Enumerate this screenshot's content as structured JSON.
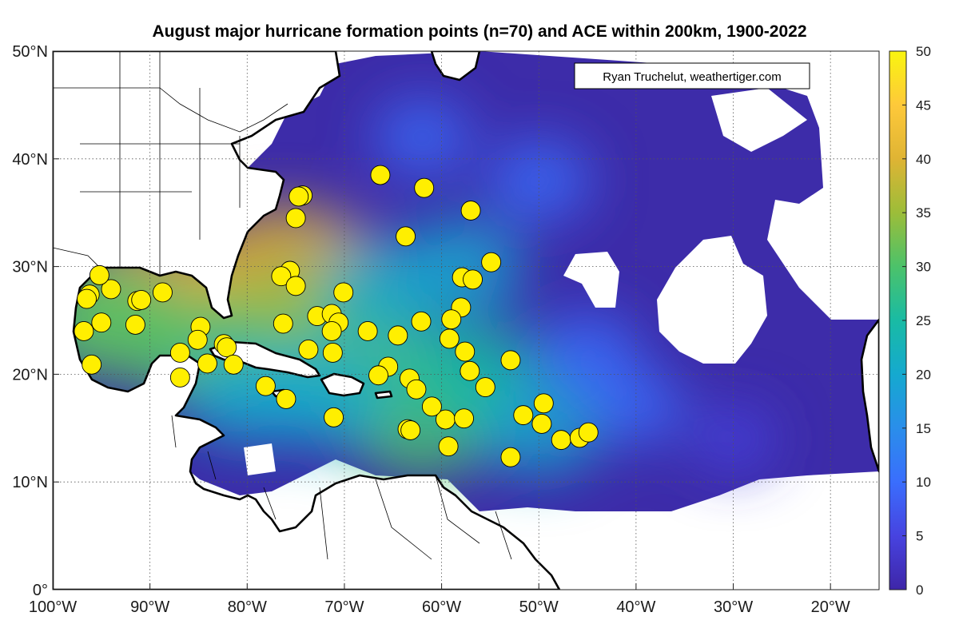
{
  "title": "August major hurricane formation points (n=70) and ACE within 200km, 1900-2022",
  "credit": "Ryan Truchelut, weathertiger.com",
  "colors": {
    "formation_point": "#ffef00",
    "coastline": "#000000",
    "borders": "#000000",
    "land": "#ffffff",
    "colormap": [
      "#3e26a8",
      "#4743e0",
      "#3a6efd",
      "#2a8eea",
      "#15a9cf",
      "#19bba4",
      "#4cc26a",
      "#9cbd39",
      "#dfb434",
      "#fec93a",
      "#f9f50f"
    ]
  },
  "chart_data": {
    "type": "scatter",
    "map_projection": "equirectangular",
    "x_axis": {
      "label": "",
      "range": [
        -100,
        -15
      ],
      "ticks": [
        -100,
        -90,
        -80,
        -70,
        -60,
        -50,
        -40,
        -30,
        -20
      ],
      "tick_labels": [
        "100°W",
        "90°W",
        "80°W",
        "70°W",
        "60°W",
        "50°W",
        "40°W",
        "30°W",
        "20°W"
      ]
    },
    "y_axis": {
      "label": "",
      "range": [
        0,
        50
      ],
      "ticks": [
        0,
        10,
        20,
        30,
        40,
        50
      ],
      "tick_labels": [
        "0°",
        "10°N",
        "20°N",
        "30°N",
        "40°N",
        "50°N"
      ]
    },
    "grid": true,
    "colorbar": {
      "range": [
        0,
        50
      ],
      "ticks": [
        0,
        5,
        10,
        15,
        20,
        25,
        30,
        35,
        40,
        45,
        50
      ]
    },
    "ace_hotspots": [
      {
        "lon": -76,
        "lat": 28.5,
        "ace": 42
      },
      {
        "lon": -90,
        "lat": 26.5,
        "ace": 38
      },
      {
        "lon": -73,
        "lat": 24.5,
        "ace": 34
      },
      {
        "lon": -68,
        "lat": 21,
        "ace": 32
      },
      {
        "lon": -62,
        "lat": 16,
        "ace": 30
      },
      {
        "lon": -84,
        "lat": 22,
        "ace": 28
      },
      {
        "lon": -57,
        "lat": 20,
        "ace": 24
      },
      {
        "lon": -50,
        "lat": 15,
        "ace": 18
      },
      {
        "lon": -72,
        "lat": 18,
        "ace": 22
      },
      {
        "lon": -66,
        "lat": 28,
        "ace": 20
      },
      {
        "lon": -80,
        "lat": 18,
        "ace": 20
      },
      {
        "lon": -95,
        "lat": 25,
        "ace": 28
      },
      {
        "lon": -58,
        "lat": 30,
        "ace": 18
      },
      {
        "lon": -45,
        "lat": 22,
        "ace": 12
      },
      {
        "lon": -40,
        "lat": 17,
        "ace": 10
      },
      {
        "lon": -30,
        "lat": 14,
        "ace": 6
      },
      {
        "lon": -50,
        "lat": 38,
        "ace": 12
      },
      {
        "lon": -62,
        "lat": 42,
        "ace": 10
      }
    ],
    "points": [
      {
        "lon": -66.3,
        "lat": 38.5
      },
      {
        "lon": -61.8,
        "lat": 37.3
      },
      {
        "lon": -74.3,
        "lat": 36.6
      },
      {
        "lon": -74.7,
        "lat": 36.5
      },
      {
        "lon": -75.0,
        "lat": 34.5
      },
      {
        "lon": -57.0,
        "lat": 35.2
      },
      {
        "lon": -63.7,
        "lat": 32.8
      },
      {
        "lon": -54.9,
        "lat": 30.4
      },
      {
        "lon": -75.6,
        "lat": 29.6
      },
      {
        "lon": -76.5,
        "lat": 29.1
      },
      {
        "lon": -75.0,
        "lat": 28.2
      },
      {
        "lon": -57.9,
        "lat": 29.0
      },
      {
        "lon": -56.8,
        "lat": 28.8
      },
      {
        "lon": -70.1,
        "lat": 27.6
      },
      {
        "lon": -96.2,
        "lat": 27.4
      },
      {
        "lon": -96.5,
        "lat": 27.0
      },
      {
        "lon": -94.0,
        "lat": 27.9
      },
      {
        "lon": -91.3,
        "lat": 26.8
      },
      {
        "lon": -90.9,
        "lat": 26.9
      },
      {
        "lon": -88.7,
        "lat": 27.6
      },
      {
        "lon": -95.2,
        "lat": 29.2
      },
      {
        "lon": -72.8,
        "lat": 25.4
      },
      {
        "lon": -71.3,
        "lat": 25.6
      },
      {
        "lon": -70.6,
        "lat": 24.8
      },
      {
        "lon": -71.3,
        "lat": 24.0
      },
      {
        "lon": -58.0,
        "lat": 26.2
      },
      {
        "lon": -59.0,
        "lat": 25.1
      },
      {
        "lon": -62.1,
        "lat": 24.9
      },
      {
        "lon": -96.8,
        "lat": 24.0
      },
      {
        "lon": -95.0,
        "lat": 24.8
      },
      {
        "lon": -91.5,
        "lat": 24.6
      },
      {
        "lon": -84.8,
        "lat": 24.4
      },
      {
        "lon": -85.1,
        "lat": 23.2
      },
      {
        "lon": -76.3,
        "lat": 24.7
      },
      {
        "lon": -67.6,
        "lat": 24.0
      },
      {
        "lon": -64.5,
        "lat": 23.6
      },
      {
        "lon": -59.2,
        "lat": 23.3
      },
      {
        "lon": -57.6,
        "lat": 22.1
      },
      {
        "lon": -82.4,
        "lat": 22.8
      },
      {
        "lon": -82.1,
        "lat": 22.5
      },
      {
        "lon": -73.7,
        "lat": 22.3
      },
      {
        "lon": -71.2,
        "lat": 22.0
      },
      {
        "lon": -86.9,
        "lat": 22.0
      },
      {
        "lon": -96.0,
        "lat": 20.9
      },
      {
        "lon": -84.1,
        "lat": 21.0
      },
      {
        "lon": -81.4,
        "lat": 20.9
      },
      {
        "lon": -65.5,
        "lat": 20.7
      },
      {
        "lon": -57.1,
        "lat": 20.3
      },
      {
        "lon": -52.9,
        "lat": 21.3
      },
      {
        "lon": -86.9,
        "lat": 19.7
      },
      {
        "lon": -63.3,
        "lat": 19.6
      },
      {
        "lon": -62.6,
        "lat": 18.6
      },
      {
        "lon": -78.1,
        "lat": 18.9
      },
      {
        "lon": -76.0,
        "lat": 17.7
      },
      {
        "lon": -49.5,
        "lat": 17.3
      },
      {
        "lon": -71.1,
        "lat": 16.0
      },
      {
        "lon": -59.6,
        "lat": 15.8
      },
      {
        "lon": -57.7,
        "lat": 15.9
      },
      {
        "lon": -51.6,
        "lat": 16.2
      },
      {
        "lon": -49.7,
        "lat": 15.4
      },
      {
        "lon": -63.5,
        "lat": 14.9
      },
      {
        "lon": -63.2,
        "lat": 14.8
      },
      {
        "lon": -47.7,
        "lat": 13.9
      },
      {
        "lon": -45.8,
        "lat": 14.1
      },
      {
        "lon": -44.9,
        "lat": 14.6
      },
      {
        "lon": -59.3,
        "lat": 13.3
      },
      {
        "lon": -52.9,
        "lat": 12.3
      },
      {
        "lon": -66.5,
        "lat": 19.9
      },
      {
        "lon": -61.0,
        "lat": 17.0
      },
      {
        "lon": -55.5,
        "lat": 18.8
      }
    ]
  }
}
